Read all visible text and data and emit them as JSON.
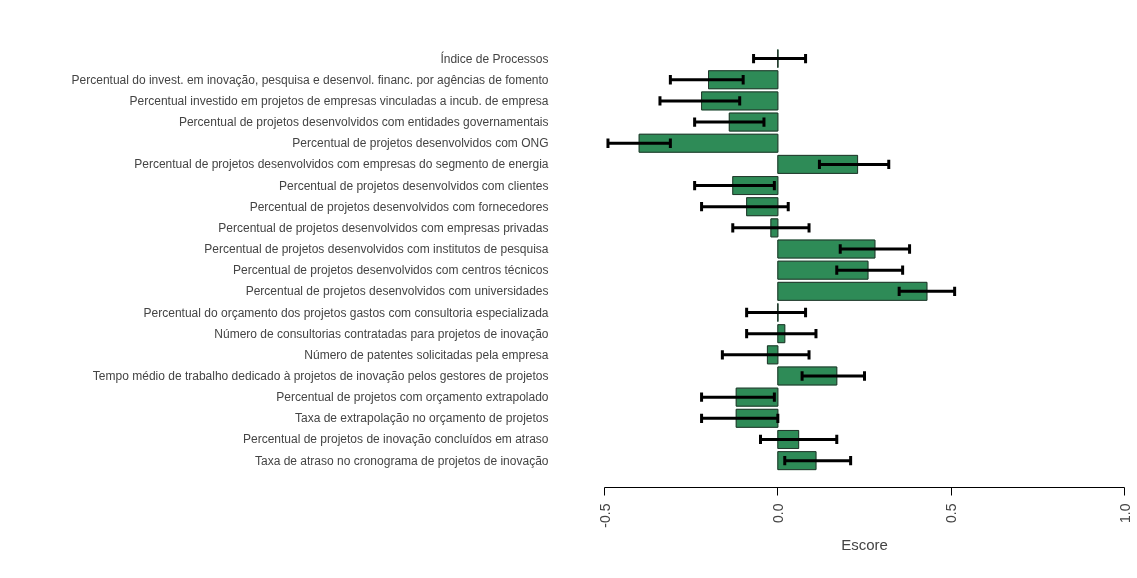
{
  "chart_data": {
    "type": "bar",
    "orientation": "horizontal",
    "xlabel": "Escore",
    "grid": false,
    "categories": [
      "Índice de Processos",
      "Percentual do invest. em inovação, pesquisa e desenvol. financ. por agências de fomento",
      "Percentual investido em projetos de empresas vinculadas a incub. de empresa",
      "Percentual de projetos desenvolvidos com entidades governamentais",
      "Percentual de projetos desenvolvidos com ONG",
      "Percentual de projetos desenvolvidos com empresas do segmento de energia",
      "Percentual de projetos desenvolvidos com clientes",
      "Percentual de projetos desenvolvidos com fornecedores",
      "Percentual de projetos desenvolvidos com empresas privadas",
      "Percentual de projetos desenvolvidos com institutos de pesquisa",
      "Percentual de projetos desenvolvidos com centros técnicos",
      "Percentual de projetos desenvolvidos com universidades",
      "Percentual do orçamento dos projetos gastos com consultoria especializada",
      "Número de consultorias contratadas para projetos de inovação",
      "Número de patentes solicitadas pela empresa",
      "Tempo médio de trabalho dedicado à projetos de inovação pelos gestores de projetos",
      "Percentual de projetos com orçamento extrapolado",
      "Taxa de extrapolação no orçamento de projetos",
      "Percentual de projetos de inovação concluídos em atraso",
      "Taxa de atraso no cronograma de projetos de inovação"
    ],
    "values": [
      0.0,
      -0.2,
      -0.22,
      -0.14,
      -0.4,
      0.23,
      -0.13,
      -0.09,
      -0.02,
      0.28,
      0.26,
      0.43,
      0.0,
      0.02,
      -0.03,
      0.17,
      -0.12,
      -0.12,
      0.06,
      0.11
    ],
    "errors": [
      [
        -0.07,
        0.08
      ],
      [
        -0.31,
        -0.1
      ],
      [
        -0.34,
        -0.11
      ],
      [
        -0.24,
        -0.04
      ],
      [
        -0.49,
        -0.31
      ],
      [
        0.12,
        0.32
      ],
      [
        -0.24,
        -0.01
      ],
      [
        -0.22,
        0.03
      ],
      [
        -0.13,
        0.09
      ],
      [
        0.18,
        0.38
      ],
      [
        0.17,
        0.36
      ],
      [
        0.35,
        0.51
      ],
      [
        -0.09,
        0.08
      ],
      [
        -0.09,
        0.11
      ],
      [
        -0.16,
        0.09
      ],
      [
        0.07,
        0.25
      ],
      [
        -0.22,
        -0.01
      ],
      [
        -0.22,
        0.0
      ],
      [
        -0.05,
        0.17
      ],
      [
        0.02,
        0.21
      ]
    ],
    "color": "#2e8b57",
    "xlim": [
      -0.5,
      1.0
    ],
    "xticks": [
      -0.5,
      {
        "value": 0,
        "label": "0.0"
      },
      0.5,
      {
        "value": 1,
        "label": "1.0"
      }
    ]
  }
}
